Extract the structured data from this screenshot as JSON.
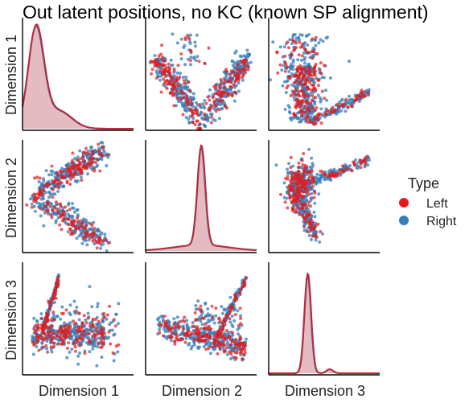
{
  "chart_data": {
    "type": "pairplot",
    "title": "Out latent positions, no KC (known SP alignment)",
    "variables": [
      "Dimension 1",
      "Dimension 2",
      "Dimension 3"
    ],
    "legend": {
      "title": "Type",
      "placement": "right",
      "entries": [
        {
          "label": "Left",
          "color": "#e41a1c"
        },
        {
          "label": "Right",
          "color": "#377eb8"
        }
      ]
    },
    "diagonal": "kde",
    "offdiagonal": "scatter",
    "grid": false,
    "series": [
      {
        "name": "Left",
        "color": "#e41a1c",
        "kde": {
          "dimension_1": {
            "x_range": [
              0,
              1
            ],
            "peak": 0.12,
            "spread": 0.07,
            "tail": "right"
          },
          "dimension_2": {
            "x_range": [
              0,
              1
            ],
            "peak": 0.5,
            "spread": 0.035,
            "tail": "both"
          },
          "dimension_3": {
            "x_range": [
              0,
              1
            ],
            "peak": 0.35,
            "spread": 0.03,
            "tail": "minor bump at 0.55"
          }
        }
      },
      {
        "name": "Right",
        "color": "#377eb8",
        "kde": {
          "dimension_1": {
            "x_range": [
              0,
              1
            ],
            "peak": 0.12,
            "spread": 0.07,
            "tail": "right"
          },
          "dimension_2": {
            "x_range": [
              0,
              1
            ],
            "peak": 0.5,
            "spread": 0.035,
            "tail": "both"
          },
          "dimension_3": {
            "x_range": [
              0,
              1
            ],
            "peak": 0.35,
            "spread": 0.03,
            "tail": "minor bump at 0.55"
          }
        }
      }
    ]
  }
}
